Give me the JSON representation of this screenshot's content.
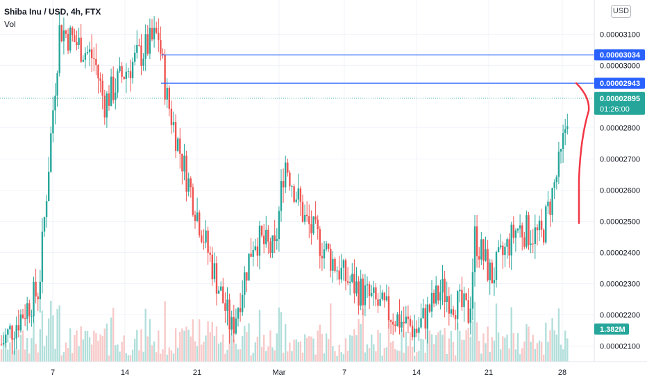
{
  "header": {
    "title": "Shiba Inu / USD, 4h, FTX",
    "volume_label": "Vol"
  },
  "currency_button": "USD",
  "colors": {
    "up": "#26a69a",
    "down": "#ef5350",
    "up_vol": "#b2dfdb",
    "down_vol": "#f7c9c8",
    "level_line": "#2962ff",
    "annotation": "#f23645",
    "grid": "#f0f3fa"
  },
  "chart_data": {
    "type": "candlestick",
    "title": "Shiba Inu / USD, 4h, FTX",
    "x_ticks": [
      "7",
      "14",
      "21",
      "Mar",
      "7",
      "14",
      "21",
      "28"
    ],
    "y_ticks": [
      "0.00003100",
      "0.00003000",
      "0.00002800",
      "0.00002700",
      "0.00002600",
      "0.00002500",
      "0.00002400",
      "0.00002300",
      "0.00002200",
      "0.00002100"
    ],
    "ylim": [
      2.05e-05,
      3.21e-05
    ],
    "levels": [
      {
        "label": "0.00003034",
        "value": 3.034e-05
      },
      {
        "label": "0.00002943",
        "value": 2.943e-05
      }
    ],
    "last_price": {
      "label": "0.00002895",
      "value": 2.895e-05,
      "countdown": "01:26:00"
    },
    "last_volume": {
      "label": "1.382M"
    },
    "key_closes": [
      {
        "x": "31 Jan",
        "close": 2.1e-05
      },
      {
        "x": "6 Feb",
        "close": 2.28e-05
      },
      {
        "x": "7 Feb",
        "close": 2.85e-05
      },
      {
        "x": "8 Feb",
        "close": 3.12e-05
      },
      {
        "x": "11 Feb",
        "close": 3.02e-05
      },
      {
        "x": "12 Feb",
        "close": 2.88e-05
      },
      {
        "x": "14 Feb",
        "close": 2.98e-05
      },
      {
        "x": "17 Feb",
        "close": 3.1e-05
      },
      {
        "x": "18 Feb",
        "close": 2.9e-05
      },
      {
        "x": "20 Feb",
        "close": 2.7e-05
      },
      {
        "x": "22 Feb",
        "close": 2.4e-05
      },
      {
        "x": "24 Feb",
        "close": 2.15e-05
      },
      {
        "x": "26 Feb",
        "close": 2.45e-05
      },
      {
        "x": "28 Feb",
        "close": 2.4e-05
      },
      {
        "x": "2 Mar",
        "close": 2.7e-05
      },
      {
        "x": "5 Mar",
        "close": 2.5e-05
      },
      {
        "x": "8 Mar",
        "close": 2.32e-05
      },
      {
        "x": "11 Mar",
        "close": 2.22e-05
      },
      {
        "x": "14 Mar",
        "close": 2.15e-05
      },
      {
        "x": "16 Mar",
        "close": 2.28e-05
      },
      {
        "x": "19 Mar",
        "close": 2.2e-05
      },
      {
        "x": "20 Mar",
        "close": 2.45e-05
      },
      {
        "x": "22 Mar",
        "close": 2.32e-05
      },
      {
        "x": "25 Mar",
        "close": 2.48e-05
      },
      {
        "x": "27 Mar",
        "close": 2.45e-05
      },
      {
        "x": "28 Mar",
        "close": 2.7e-05
      },
      {
        "x": "28 Mar",
        "close": 2.895e-05
      }
    ]
  }
}
